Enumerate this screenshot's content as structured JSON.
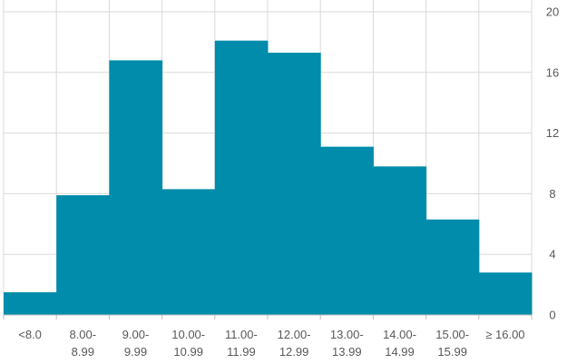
{
  "chart_data": {
    "type": "bar",
    "title": "",
    "xlabel": "",
    "ylabel": "",
    "categories": [
      [
        "<8.0"
      ],
      [
        "8.00-",
        "8.99"
      ],
      [
        "9.00-",
        "9.99"
      ],
      [
        "10.00-",
        "10.99"
      ],
      [
        "11.00-",
        "11.99"
      ],
      [
        "12.00-",
        "12.99"
      ],
      [
        "13.00-",
        "13.99"
      ],
      [
        "14.00-",
        "14.99"
      ],
      [
        "15.00-",
        "15.99"
      ],
      [
        "≥ 16.00"
      ]
    ],
    "values": [
      1.5,
      7.9,
      16.8,
      8.3,
      18.1,
      17.3,
      11.1,
      9.8,
      6.3,
      2.8
    ],
    "ylim": [
      0,
      20
    ],
    "yticks": [
      0,
      4,
      8,
      12,
      16,
      20
    ],
    "y_axis_side": "right",
    "grid": true,
    "legend": "none",
    "bar_color": "#008CAA",
    "grid_color": "#D9D9D9",
    "text_color": "#595959"
  }
}
